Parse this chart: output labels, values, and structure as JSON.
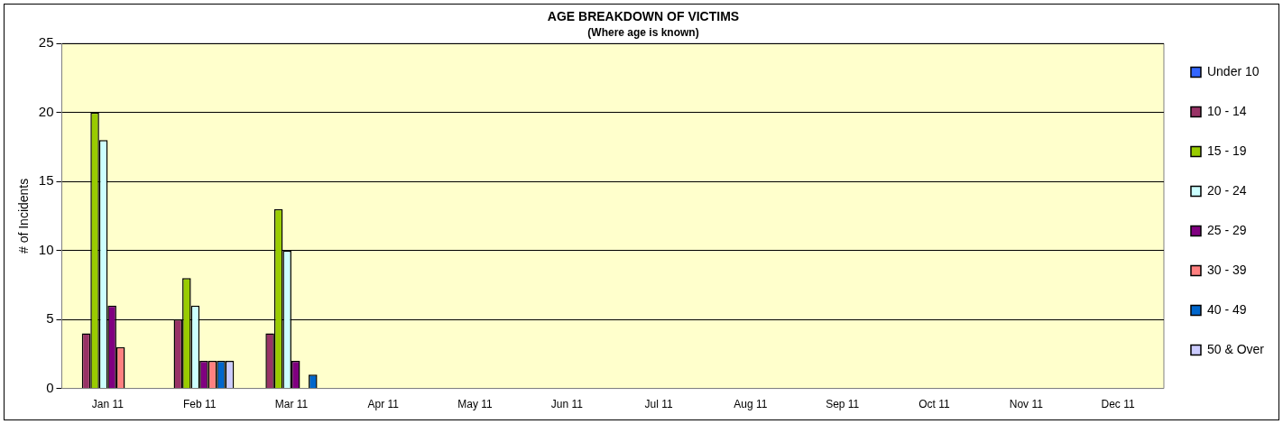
{
  "chart_data": {
    "type": "bar",
    "title": "AGE BREAKDOWN OF VICTIMS",
    "subtitle": "(Where age is known)",
    "ylabel": "# of Incidents",
    "categories": [
      "Jan 11",
      "Feb 11",
      "Mar 11",
      "Apr 11",
      "May 11",
      "Jun 11",
      "Jul 11",
      "Aug 11",
      "Sep 11",
      "Oct 11",
      "Nov 11",
      "Dec 11"
    ],
    "series": [
      {
        "name": "Under 10",
        "color": "#3366ff",
        "values": [
          0,
          0,
          0,
          null,
          null,
          null,
          null,
          null,
          null,
          null,
          null,
          null
        ]
      },
      {
        "name": "10 - 14",
        "color": "#993366",
        "values": [
          4,
          5,
          4,
          null,
          null,
          null,
          null,
          null,
          null,
          null,
          null,
          null
        ]
      },
      {
        "name": "15 - 19",
        "color": "#99cc00",
        "values": [
          20,
          8,
          13,
          null,
          null,
          null,
          null,
          null,
          null,
          null,
          null,
          null
        ]
      },
      {
        "name": "20 - 24",
        "color": "#ccffff",
        "values": [
          18,
          6,
          10,
          null,
          null,
          null,
          null,
          null,
          null,
          null,
          null,
          null
        ]
      },
      {
        "name": "25 - 29",
        "color": "#800080",
        "values": [
          6,
          2,
          2,
          null,
          null,
          null,
          null,
          null,
          null,
          null,
          null,
          null
        ]
      },
      {
        "name": "30 - 39",
        "color": "#ff8080",
        "values": [
          3,
          2,
          0,
          null,
          null,
          null,
          null,
          null,
          null,
          null,
          null,
          null
        ]
      },
      {
        "name": "40 - 49",
        "color": "#0066cc",
        "values": [
          0,
          2,
          1,
          null,
          null,
          null,
          null,
          null,
          null,
          null,
          null,
          null
        ]
      },
      {
        "name": "50 & Over",
        "color": "#ccccff",
        "values": [
          0,
          2,
          0,
          null,
          null,
          null,
          null,
          null,
          null,
          null,
          null,
          null
        ]
      }
    ],
    "ylim": [
      0,
      25
    ],
    "yticks": [
      0,
      5,
      10,
      15,
      20,
      25
    ],
    "grid": "y",
    "legend": "right"
  }
}
